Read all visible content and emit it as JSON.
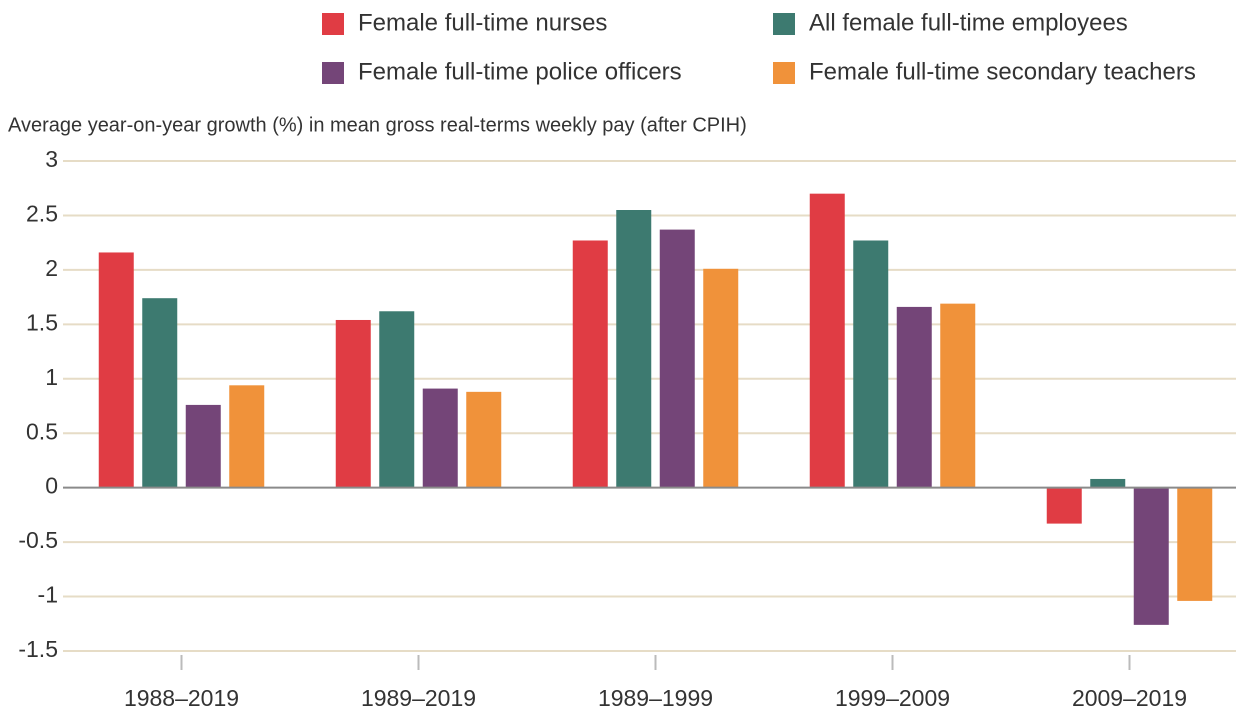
{
  "chart_data": {
    "type": "bar",
    "y_axis_label": "Average year-on-year growth (%) in mean gross real-terms weekly pay (after CPIH)",
    "categories": [
      "1988–2019",
      "1989–2019",
      "1989–1999",
      "1999–2009",
      "2009–2019"
    ],
    "series": [
      {
        "name": "Female full-time nurses",
        "color": "#e03c44",
        "values": [
          2.16,
          1.54,
          2.27,
          2.7,
          -0.33
        ]
      },
      {
        "name": "All female full-time employees",
        "color": "#3d7a70",
        "values": [
          1.74,
          1.62,
          2.55,
          2.27,
          0.08
        ]
      },
      {
        "name": "Female full-time police officers",
        "color": "#744578",
        "values": [
          0.76,
          0.91,
          2.37,
          1.66,
          -1.26
        ]
      },
      {
        "name": "Female full-time secondary teachers",
        "color": "#f0923a",
        "values": [
          0.94,
          0.88,
          2.01,
          1.69,
          -1.04
        ]
      }
    ],
    "ylim": [
      -1.5,
      3
    ],
    "yticks": [
      -1.5,
      -1,
      -0.5,
      0,
      0.5,
      1,
      1.5,
      2,
      2.5,
      3
    ],
    "grid": true,
    "legend": "top"
  }
}
